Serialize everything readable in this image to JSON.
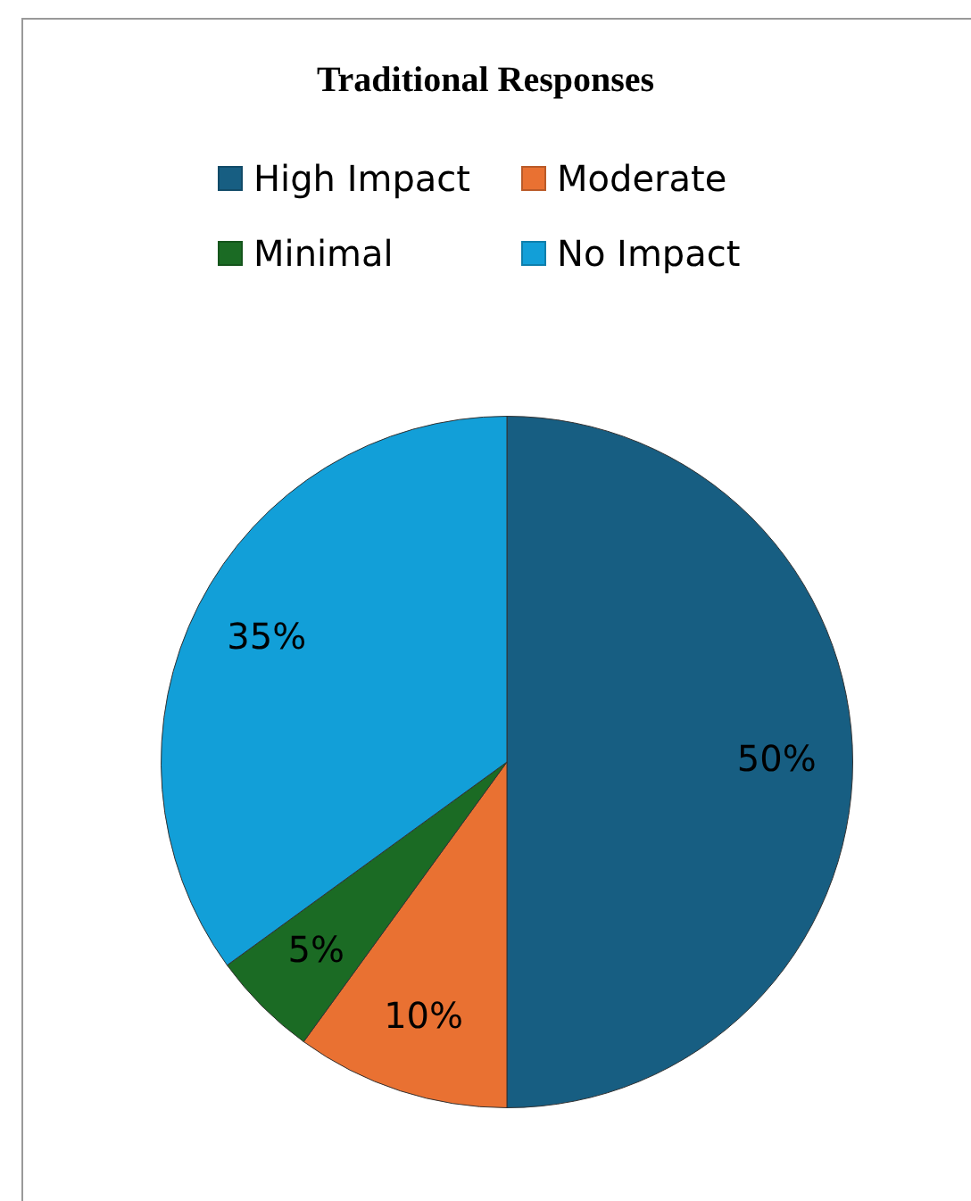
{
  "chart_data": {
    "type": "pie",
    "title": "Traditional Responses",
    "categories": [
      "High Impact",
      "Moderate",
      "Minimal",
      "No Impact"
    ],
    "values": [
      50,
      10,
      5,
      35
    ],
    "colors": [
      "#175e82",
      "#e97132",
      "#1b6b24",
      "#129fd8"
    ],
    "value_labels": [
      "50%",
      "10%",
      "5%",
      "35%"
    ],
    "legend": "top"
  }
}
